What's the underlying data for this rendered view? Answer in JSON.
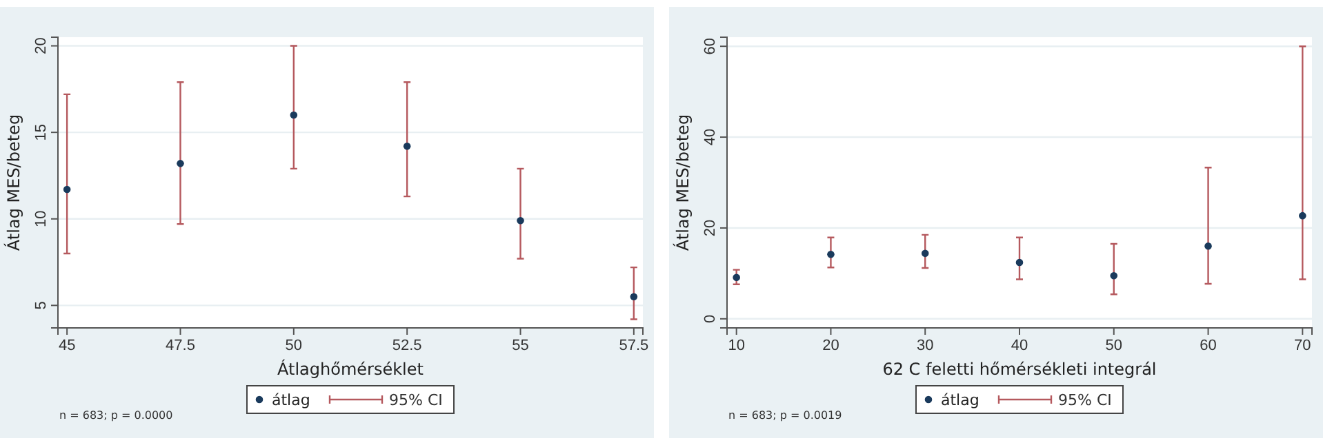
{
  "chart_data": [
    {
      "type": "scatter",
      "xlabel": "Átlaghőmérséklet",
      "ylabel": "Átlag MES/beteg",
      "x": [
        45,
        47.5,
        50,
        52.5,
        55,
        57.5
      ],
      "series": [
        {
          "name": "átlag",
          "color": "#1a3a5c",
          "values": [
            11.7,
            13.2,
            16.0,
            14.2,
            9.9,
            5.5
          ],
          "errors": [
            [
              8.0,
              17.2
            ],
            [
              9.7,
              17.9
            ],
            [
              12.9,
              20.0
            ],
            [
              11.3,
              17.9
            ],
            [
              7.7,
              12.9
            ],
            [
              4.2,
              7.2
            ]
          ]
        }
      ],
      "xlim": [
        44.8,
        57.7
      ],
      "xticks": [
        45,
        47.5,
        50,
        52.5,
        55,
        57.5
      ],
      "ylim": [
        3.7,
        20.5
      ],
      "yticks": [
        5,
        10,
        15,
        20
      ],
      "grid": "y",
      "legend": "bottom",
      "marker": "circle",
      "annotations": [
        "95% CI",
        "n = 683; p = 0.0000"
      ]
    },
    {
      "type": "scatter",
      "xlabel": "62 C feletti hőmérsékleti integrál",
      "ylabel": "Átlag MES/beteg",
      "x": [
        10,
        20,
        30,
        40,
        50,
        60,
        70
      ],
      "series": [
        {
          "name": "átlag",
          "color": "#1a3a5c",
          "values": [
            9.1,
            14.2,
            14.4,
            12.4,
            9.5,
            16.0,
            22.7
          ],
          "errors": [
            [
              7.6,
              10.8
            ],
            [
              11.3,
              17.9
            ],
            [
              11.2,
              18.5
            ],
            [
              8.7,
              17.9
            ],
            [
              5.4,
              16.5
            ],
            [
              7.7,
              33.3
            ],
            [
              8.7,
              60
            ]
          ]
        }
      ],
      "xlim": [
        9,
        71
      ],
      "xticks": [
        10,
        20,
        30,
        40,
        50,
        60,
        70
      ],
      "ylim": [
        -2,
        62
      ],
      "yticks": [
        0,
        20,
        40,
        60
      ],
      "grid": "y",
      "legend": "bottom",
      "marker": "circle",
      "annotations": [
        "95% CI",
        "n = 683; p = 0.0019"
      ]
    }
  ]
}
